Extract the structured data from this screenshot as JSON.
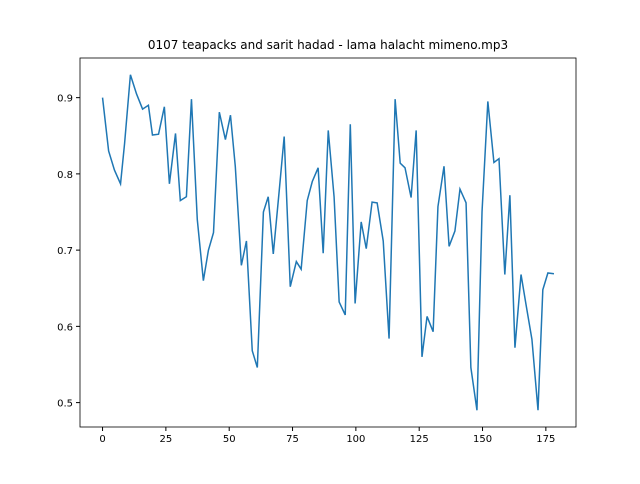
{
  "chart_data": {
    "type": "line",
    "title": "0107 teapacks and sarit hadad - lama halacht mimeno.mp3",
    "x": [
      0,
      2.4,
      4.7,
      7.1,
      8.7,
      11.0,
      13.4,
      15.8,
      18.1,
      19.7,
      22.1,
      24.4,
      26.4,
      28.8,
      30.7,
      33.1,
      35.1,
      37.4,
      39.8,
      41.8,
      43.8,
      46.1,
      48.5,
      50.5,
      52.4,
      54.8,
      56.8,
      59.1,
      61.1,
      63.5,
      65.4,
      67.4,
      69.8,
      71.7,
      74.1,
      76.5,
      78.4,
      80.8,
      82.8,
      85.1,
      87.1,
      89.1,
      91.4,
      93.4,
      95.8,
      97.8,
      99.7,
      102.1,
      104.1,
      106.4,
      108.4,
      110.8,
      113.1,
      115.5,
      117.5,
      119.4,
      121.8,
      123.8,
      126.1,
      128.1,
      130.5,
      132.4,
      134.8,
      136.8,
      139.1,
      141.1,
      143.5,
      145.4,
      147.8,
      149.8,
      152.1,
      154.5,
      156.5,
      158.8,
      160.8,
      162.8,
      165.2,
      167.1,
      169.5,
      171.9,
      173.8,
      175.8,
      178.2
    ],
    "series": [
      {
        "color": "#1f77b4",
        "values": [
          0.9,
          0.83,
          0.805,
          0.787,
          0.84,
          0.93,
          0.905,
          0.885,
          0.89,
          0.851,
          0.852,
          0.888,
          0.787,
          0.853,
          0.765,
          0.77,
          0.898,
          0.74,
          0.66,
          0.7,
          0.723,
          0.881,
          0.845,
          0.877,
          0.81,
          0.68,
          0.712,
          0.568,
          0.546,
          0.75,
          0.77,
          0.695,
          0.78,
          0.849,
          0.652,
          0.685,
          0.675,
          0.765,
          0.79,
          0.808,
          0.696,
          0.857,
          0.77,
          0.632,
          0.615,
          0.865,
          0.63,
          0.737,
          0.702,
          0.763,
          0.762,
          0.712,
          0.584,
          0.898,
          0.814,
          0.808,
          0.769,
          0.857,
          0.56,
          0.613,
          0.593,
          0.757,
          0.81,
          0.705,
          0.725,
          0.78,
          0.762,
          0.546,
          0.49,
          0.75,
          0.895,
          0.815,
          0.82,
          0.668,
          0.772,
          0.572,
          0.668,
          0.63,
          0.583,
          0.49,
          0.648,
          0.67,
          0.669
        ]
      }
    ],
    "xlim": [
      -8.9,
      186.9
    ],
    "ylim": [
      0.468,
      0.952
    ],
    "xticks": [
      0,
      25,
      50,
      75,
      100,
      125,
      150,
      175
    ],
    "yticks": [
      0.5,
      0.6,
      0.7,
      0.8,
      0.9
    ]
  }
}
